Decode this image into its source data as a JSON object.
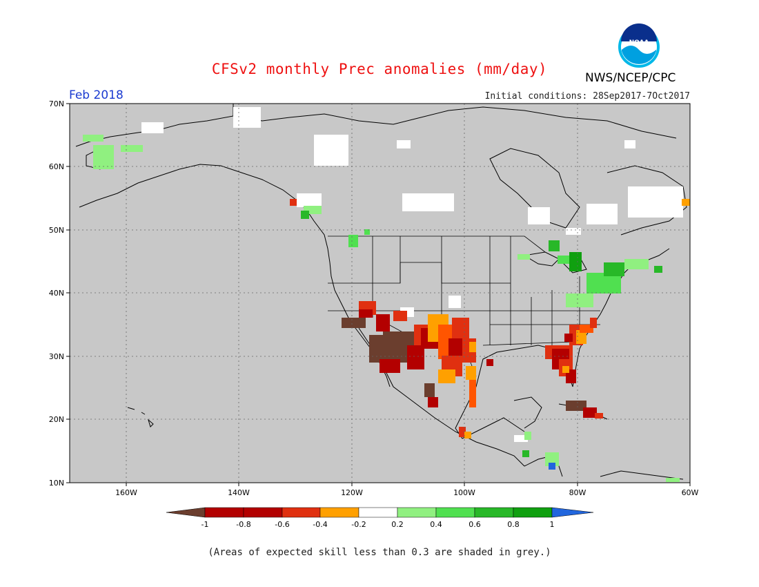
{
  "title": "CFSv2 monthly Prec anomalies (mm/day)",
  "org": "NWS/NCEP/CPC",
  "logo_text": "NOAA",
  "valid_month": "Feb 2018",
  "initial_conditions": "Initial conditions: 28Sep2017-7Oct2017",
  "footnote": "(Areas of expected skill less than 0.3 are shaded in grey.)",
  "map": {
    "lat_labels": [
      "70N",
      "60N",
      "50N",
      "40N",
      "30N",
      "20N",
      "10N"
    ],
    "lon_labels": [
      "160W",
      "140W",
      "120W",
      "100W",
      "80W",
      "60W"
    ],
    "background_color": "#c8c8c8",
    "projection": "lat-lon",
    "lat_range": [
      10,
      70
    ],
    "lon_range": [
      -170,
      -60
    ]
  },
  "colorbar": {
    "labels": [
      "-1",
      "-0.8",
      "-0.6",
      "-0.4",
      "-0.2",
      "0.2",
      "0.4",
      "0.6",
      "0.8",
      "1"
    ],
    "colors": [
      "#6b3e2e",
      "#b30000",
      "#e03010",
      "#ff5500",
      "#ffa000",
      "#ffffff",
      "#90f080",
      "#50e050",
      "#28b828",
      "#10a010",
      "#2266dd"
    ],
    "under_color": "#6b3e2e",
    "over_color": "#2266dd"
  }
}
